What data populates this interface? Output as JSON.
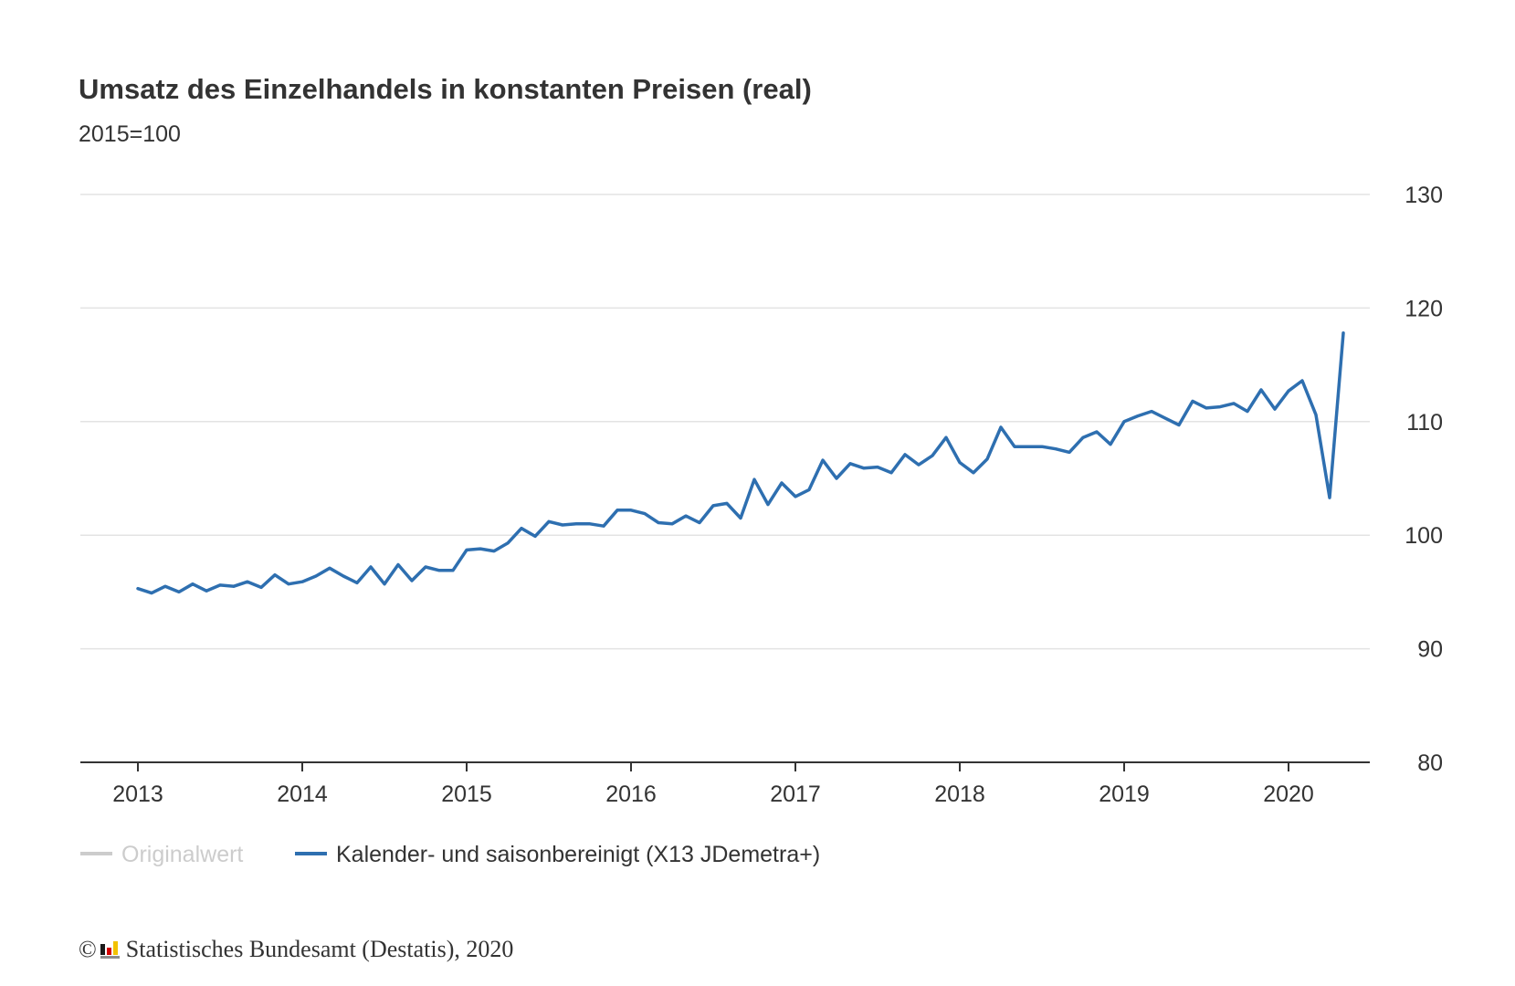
{
  "chart_data": {
    "type": "line",
    "title": "Umsatz des Einzelhandels in konstanten Preisen (real)",
    "subtitle": "2015=100",
    "x_start": "2013-01",
    "x_labels": [
      "2013",
      "2014",
      "2015",
      "2016",
      "2017",
      "2018",
      "2019",
      "2020"
    ],
    "y_ticks": [
      130,
      120,
      110,
      100,
      90,
      80
    ],
    "ylim": [
      80,
      130
    ],
    "y_axis_position": "right",
    "grid": true,
    "legend": {
      "placement": "bottom-left",
      "items": [
        {
          "label": "Originalwert",
          "color": "#cccccc",
          "active": false
        },
        {
          "label": "Kalender- und saisonbereinigt (X13 JDemetra+)",
          "color": "#2e6fb0",
          "active": true
        }
      ]
    },
    "series": [
      {
        "name": "Kalender- und saisonbereinigt (X13 JDemetra+)",
        "color": "#2e6fb0",
        "values": [
          95.3,
          94.9,
          95.5,
          95.0,
          95.7,
          95.1,
          95.6,
          95.5,
          95.9,
          95.4,
          96.5,
          95.7,
          95.9,
          96.4,
          97.1,
          96.4,
          95.8,
          97.2,
          95.7,
          97.4,
          96.0,
          97.2,
          96.9,
          96.9,
          98.7,
          98.8,
          98.6,
          99.3,
          100.6,
          99.9,
          101.2,
          100.9,
          101.0,
          101.0,
          100.8,
          102.2,
          102.2,
          101.9,
          101.1,
          101.0,
          101.7,
          101.1,
          102.6,
          102.8,
          101.5,
          104.9,
          102.7,
          104.6,
          103.4,
          104.0,
          106.6,
          105.0,
          106.3,
          105.9,
          106.0,
          105.5,
          107.1,
          106.2,
          107.0,
          108.6,
          106.4,
          105.5,
          106.7,
          109.5,
          107.8,
          107.8,
          107.8,
          107.6,
          107.3,
          108.6,
          109.1,
          108.0,
          110.0,
          110.5,
          110.9,
          110.3,
          109.7,
          111.8,
          111.2,
          111.3,
          111.6,
          110.9,
          112.8,
          111.1,
          112.7,
          113.6,
          110.6,
          103.3,
          117.8
        ]
      }
    ]
  },
  "footer": {
    "copyright": "©",
    "source": "Statistisches Bundesamt (Destatis), 2020"
  }
}
